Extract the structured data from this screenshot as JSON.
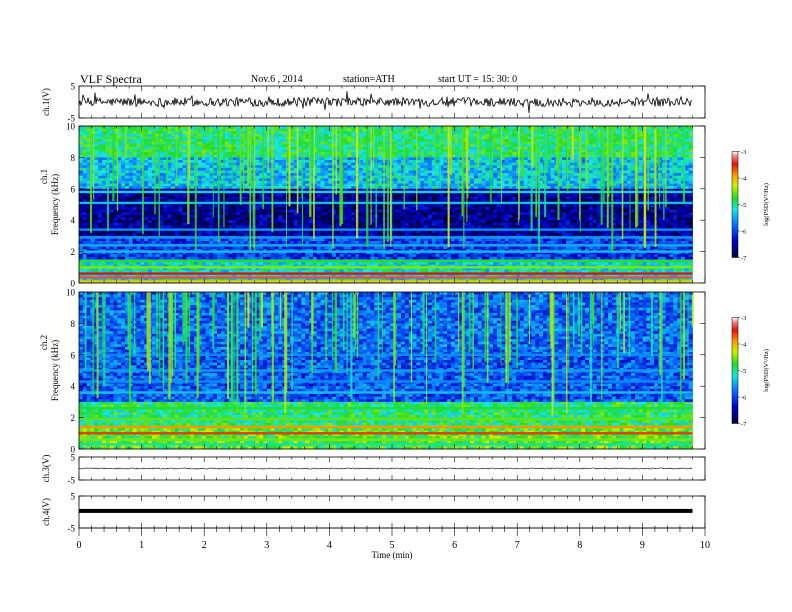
{
  "header": {
    "title": "VLF  Spectra",
    "date": "Nov.6  , 2014",
    "station": "station=ATH",
    "start": "start  UT  =   15: 30: 0"
  },
  "chart_data": [
    {
      "type": "line",
      "ylabel": "ch.1(V)",
      "ylim": [
        -5,
        5
      ],
      "yticks": [
        "5",
        "-5"
      ],
      "xlim": [
        0,
        9.8
      ],
      "baseline": 0,
      "noise": "high"
    },
    {
      "type": "heatmap",
      "ylabel_top": "ch.1",
      "ylabel": "Frequency  (kHz)",
      "ylim": [
        0,
        10
      ],
      "yticks": [
        "10",
        "8",
        "6",
        "4",
        "2",
        "0"
      ],
      "xlim": [
        0,
        9.8
      ],
      "colorbar": {
        "label": "log(PSD(V²/Hz)",
        "range": [
          -7,
          -3
        ],
        "ticks": [
          "-3",
          "-4",
          "-5",
          "-6",
          "-7"
        ]
      }
    },
    {
      "type": "heatmap",
      "ylabel_top": "ch.2",
      "ylabel": "Frequency  (kHz)",
      "ylim": [
        0,
        10
      ],
      "yticks": [
        "10",
        "8",
        "6",
        "4",
        "2",
        "0"
      ],
      "xlim": [
        0,
        9.8
      ],
      "colorbar": {
        "label": "log(PSD(V²/Hz)",
        "range": [
          -7,
          -3
        ],
        "ticks": [
          "-3",
          "-4",
          "-5",
          "-6",
          "-7"
        ]
      }
    },
    {
      "type": "line",
      "ylabel": "ch.3(V)",
      "ylim": [
        -5,
        5
      ],
      "yticks": [
        "5",
        "-5"
      ],
      "xlim": [
        0,
        9.8
      ],
      "baseline": 0,
      "noise": "low"
    },
    {
      "type": "line",
      "ylabel": "ch.4(V)",
      "ylim": [
        -5,
        5
      ],
      "yticks": [
        "5",
        "-5"
      ],
      "xlim": [
        0,
        9.8
      ],
      "baseline": 0,
      "noise": "band"
    }
  ],
  "xaxis": {
    "label": "Time  (min)",
    "range": [
      0,
      10
    ],
    "ticks": [
      "0",
      "1",
      "2",
      "3",
      "4",
      "5",
      "6",
      "7",
      "8",
      "9",
      "10"
    ]
  }
}
